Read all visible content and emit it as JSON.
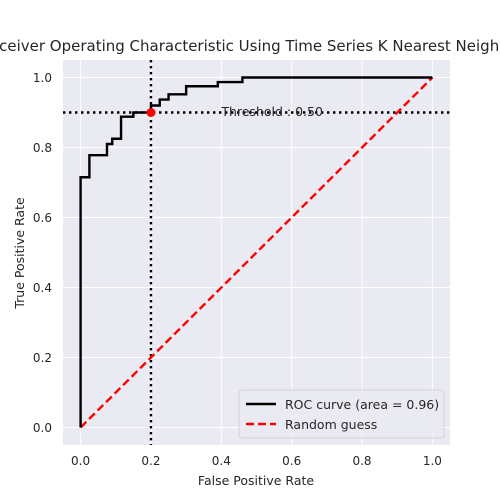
{
  "chart_data": {
    "type": "line",
    "title": "Receiver Operating Characteristic Using Time Series K Nearest Neighbors",
    "xlabel": "False Positive Rate",
    "ylabel": "True Positive Rate",
    "xlim": [
      -0.05,
      1.05
    ],
    "ylim": [
      -0.05,
      1.05
    ],
    "xticks": [
      0.0,
      0.2,
      0.4,
      0.6,
      0.8,
      1.0
    ],
    "xtick_labels": [
      "0.0",
      "0.2",
      "0.4",
      "0.6",
      "0.8",
      "1.0"
    ],
    "yticks": [
      0.0,
      0.2,
      0.4,
      0.6,
      0.8,
      1.0
    ],
    "ytick_labels": [
      "0.0",
      "0.2",
      "0.4",
      "0.6",
      "0.8",
      "1.0"
    ],
    "grid": true,
    "legend_position": "lower-right",
    "series": [
      {
        "name": "ROC curve (area = 0.96)",
        "color": "#000000",
        "style": "solid",
        "x": [
          0.0,
          0.0,
          0.025,
          0.025,
          0.075,
          0.075,
          0.09,
          0.09,
          0.115,
          0.115,
          0.15,
          0.15,
          0.2,
          0.2,
          0.225,
          0.225,
          0.25,
          0.25,
          0.3,
          0.3,
          0.39,
          0.39,
          0.46,
          0.46,
          1.0
        ],
        "y": [
          0.0,
          0.715,
          0.715,
          0.778,
          0.778,
          0.81,
          0.81,
          0.825,
          0.825,
          0.888,
          0.888,
          0.9,
          0.9,
          0.92,
          0.92,
          0.937,
          0.937,
          0.952,
          0.952,
          0.975,
          0.975,
          0.987,
          0.987,
          1.0,
          1.0
        ]
      },
      {
        "name": "Random guess",
        "color": "#ff0000",
        "style": "dashed",
        "x": [
          0.0,
          1.0
        ],
        "y": [
          0.0,
          1.0
        ]
      }
    ],
    "reference_lines": {
      "vertical_x": 0.2,
      "horizontal_y": 0.9,
      "style": "dotted",
      "color": "#000000"
    },
    "marker": {
      "x": 0.2,
      "y": 0.9,
      "color": "#ff0000"
    },
    "annotation": {
      "text": "Threshold : 0.50",
      "x": 0.4,
      "y": 0.85
    }
  }
}
